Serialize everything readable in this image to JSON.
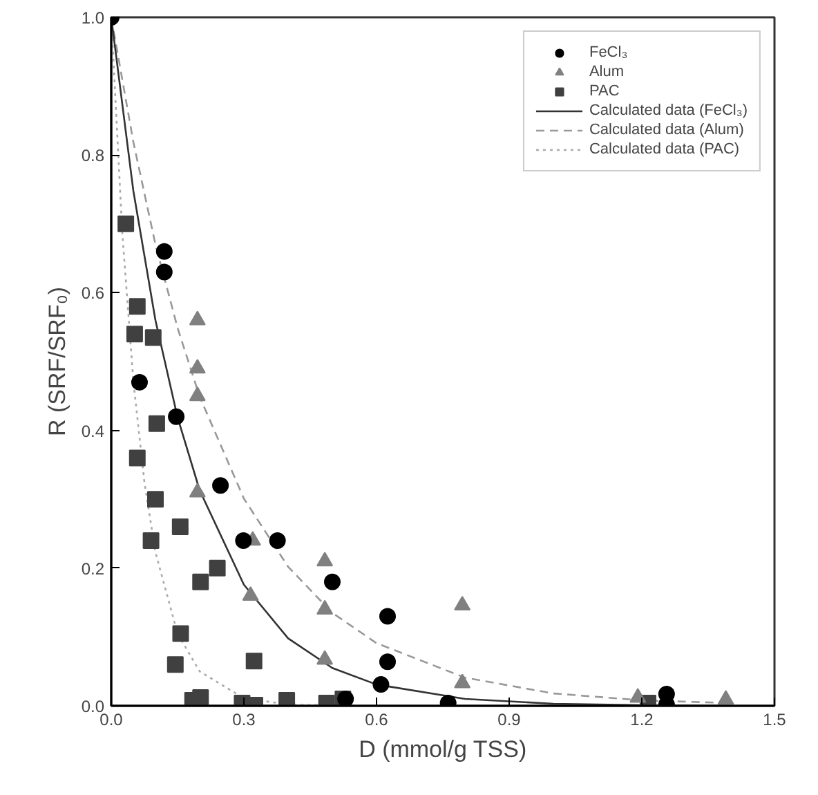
{
  "chart_data": {
    "type": "scatter",
    "xlabel": "D (mmol/g TSS)",
    "ylabel": "R (SRF/SRF₀)",
    "xlim": [
      0,
      1.5
    ],
    "ylim": [
      0,
      1.0
    ],
    "xticks": [
      {
        "value": 0,
        "label": "0.0"
      },
      0.3,
      0.6,
      0.9,
      1.2,
      1.5
    ],
    "yticks": [
      {
        "value": 0,
        "label": "0.0"
      },
      0.2,
      0.4,
      0.6,
      0.8,
      {
        "value": 1.0,
        "label": "1.0"
      }
    ],
    "grid": false,
    "legend": "top right",
    "series": [
      {
        "name": "FeCl₃",
        "marker": "circle",
        "color": "#000000",
        "x": [
          0,
          0.12,
          0.12,
          0.064,
          0.147,
          0.247,
          0.299,
          0.376,
          0.5,
          0.53,
          0.625,
          0.625,
          0.61,
          0.762,
          1.256,
          1.256
        ],
        "values": [
          1.0,
          0.66,
          0.63,
          0.47,
          0.42,
          0.32,
          0.24,
          0.24,
          0.18,
          0.01,
          0.13,
          0.064,
          0.031,
          0.004,
          0.017,
          0.002
        ]
      },
      {
        "name": "Alum",
        "marker": "triangle",
        "color": "#808080",
        "x": [
          0.195,
          0.195,
          0.195,
          0.195,
          0.32,
          0.483,
          0.315,
          0.483,
          0.483,
          0.794,
          0.794,
          1.191,
          1.39
        ],
        "values": [
          0.56,
          0.49,
          0.45,
          0.31,
          0.24,
          0.21,
          0.16,
          0.14,
          0.067,
          0.146,
          0.033,
          0.012,
          0.009
        ]
      },
      {
        "name": "PAC",
        "marker": "square",
        "color": "#404040",
        "x": [
          0.033,
          0.059,
          0.053,
          0.095,
          0.103,
          0.059,
          0.1,
          0.156,
          0.09,
          0.24,
          0.202,
          0.157,
          0.145,
          0.323,
          0.202,
          0.184,
          0.296,
          0.325,
          0.397,
          0.487,
          0.524,
          1.214
        ],
        "values": [
          0.7,
          0.58,
          0.54,
          0.535,
          0.41,
          0.36,
          0.3,
          0.26,
          0.24,
          0.2,
          0.18,
          0.105,
          0.06,
          0.065,
          0.012,
          0.008,
          0.004,
          0.001,
          0.008,
          0.004,
          0.01,
          0.004
        ]
      },
      {
        "name": "Calculated data (FeCl₃)",
        "type": "line",
        "line_style": "solid",
        "color": "#333333",
        "x": [
          0,
          0.05,
          0.1,
          0.15,
          0.2,
          0.3,
          0.4,
          0.5,
          0.6,
          0.8,
          1.0,
          1.2,
          1.4
        ],
        "values": [
          1.0,
          0.748,
          0.56,
          0.419,
          0.313,
          0.176,
          0.098,
          0.055,
          0.031,
          0.01,
          0.003,
          0.001,
          0
        ]
      },
      {
        "name": "Calculated data (Alum)",
        "type": "line",
        "line_style": "dashed",
        "color": "#999999",
        "x": [
          0,
          0.05,
          0.1,
          0.15,
          0.2,
          0.3,
          0.4,
          0.5,
          0.6,
          0.8,
          1.0,
          1.2,
          1.4
        ],
        "values": [
          1.0,
          0.819,
          0.67,
          0.549,
          0.449,
          0.301,
          0.202,
          0.135,
          0.091,
          0.041,
          0.018,
          0.008,
          0.004
        ]
      },
      {
        "name": "Calculated data (PAC)",
        "type": "line",
        "line_style": "dotted",
        "color": "#aaaaaa",
        "x": [
          0,
          0.025,
          0.05,
          0.075,
          0.1,
          0.15,
          0.2,
          0.3,
          0.4,
          0.6,
          0.8,
          1.0,
          1.4
        ],
        "values": [
          1.0,
          0.687,
          0.472,
          0.325,
          0.223,
          0.105,
          0.05,
          0.011,
          0.002,
          0,
          0,
          0,
          0
        ]
      }
    ]
  }
}
